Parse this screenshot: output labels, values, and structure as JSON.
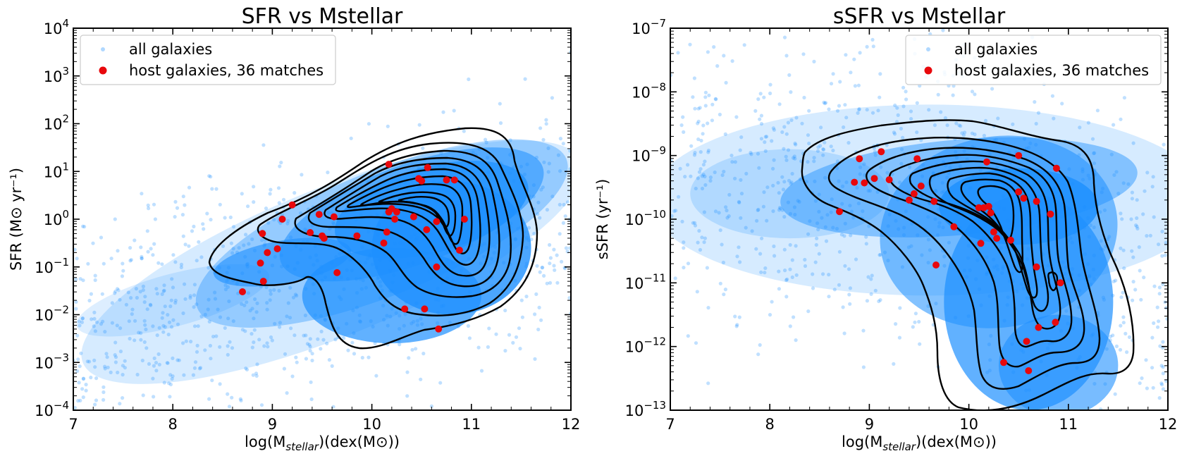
{
  "colors": {
    "all_galaxies": "#1e90ff",
    "host_galaxies": "#e8080c",
    "contour": "#000000"
  },
  "chart_data": [
    {
      "type": "scatter",
      "title": "SFR vs Mstellar",
      "xlabel": {
        "pre": "log(M",
        "sub": "stellar",
        "post": ")(dex(M⊙))"
      },
      "ylabel": "SFR (M⊙ yr⁻¹)",
      "xlim": [
        7,
        12
      ],
      "ylim_log10": [
        -4,
        4
      ],
      "yscale": "log",
      "xticks": [
        "7",
        "8",
        "9",
        "10",
        "11",
        "12"
      ],
      "yticks_exponents": [
        "−4",
        "−3",
        "−2",
        "−1",
        "0",
        "1",
        "2",
        "3",
        "4"
      ],
      "legend": {
        "position": "upper-left",
        "entries": [
          "all galaxies",
          "host galaxies, 36 matches"
        ]
      },
      "all_galaxies_density": {
        "description": "dense cloud",
        "x_range": [
          7.0,
          12.0
        ],
        "log10_y_range": [
          -4.0,
          3.5
        ]
      },
      "contour_levels": 10,
      "series": [
        {
          "name": "host galaxies, 36 matches",
          "x": [
            8.7,
            8.88,
            8.9,
            8.91,
            8.95,
            9.05,
            9.1,
            9.2,
            9.38,
            9.47,
            9.5,
            9.52,
            9.62,
            9.65,
            9.85,
            10.12,
            10.15,
            10.17,
            10.17,
            10.2,
            10.23,
            10.25,
            10.33,
            10.42,
            10.47,
            10.5,
            10.53,
            10.55,
            10.56,
            10.65,
            10.65,
            10.67,
            10.75,
            10.83,
            10.88,
            10.93
          ],
          "log10_y": [
            -1.52,
            -0.92,
            -0.3,
            -1.3,
            -0.7,
            -0.62,
            0.0,
            0.3,
            -0.28,
            0.1,
            -0.35,
            -0.4,
            0.05,
            -1.12,
            -0.35,
            -0.5,
            -0.27,
            1.15,
            0.15,
            0.22,
            0.0,
            0.15,
            -1.88,
            0.05,
            0.85,
            0.8,
            -1.88,
            -0.22,
            1.08,
            -1.0,
            -0.05,
            -2.3,
            0.82,
            0.82,
            -0.65,
            0.0
          ]
        }
      ]
    },
    {
      "type": "scatter",
      "title": "sSFR vs Mstellar",
      "xlabel": {
        "pre": "log(M",
        "sub": "stellar",
        "post": ")(dex(M⊙))"
      },
      "ylabel": "sSFR (yr⁻¹)",
      "xlim": [
        7,
        12
      ],
      "ylim_log10": [
        -13,
        -7
      ],
      "yscale": "log",
      "xticks": [
        "7",
        "8",
        "9",
        "10",
        "11",
        "12"
      ],
      "yticks_exponents": [
        "−13",
        "−12",
        "−11",
        "−10",
        "−9",
        "−8",
        "−7"
      ],
      "legend": {
        "position": "upper-right",
        "entries": [
          "all galaxies",
          "host galaxies, 36 matches"
        ]
      },
      "all_galaxies_density": {
        "description": "dense cloud",
        "x_range": [
          7.0,
          12.0
        ],
        "log10_y_range": [
          -13.0,
          -7.9
        ]
      },
      "contour_levels": 10,
      "series": [
        {
          "name": "host galaxies, 36 matches",
          "x": [
            8.7,
            8.85,
            8.9,
            8.95,
            9.05,
            9.12,
            9.2,
            9.4,
            9.45,
            9.48,
            9.52,
            9.65,
            9.67,
            9.85,
            10.1,
            10.12,
            10.15,
            10.18,
            10.2,
            10.22,
            10.25,
            10.28,
            10.35,
            10.42,
            10.5,
            10.55,
            10.58,
            10.6,
            10.68,
            10.68,
            10.7,
            10.82,
            10.87,
            10.92,
            10.88,
            10.5
          ],
          "log10_y": [
            -9.88,
            -9.42,
            -9.05,
            -9.43,
            -9.36,
            -8.94,
            -9.38,
            -9.7,
            -9.6,
            -9.05,
            -9.48,
            -9.72,
            -10.72,
            -10.12,
            -9.82,
            -10.38,
            -9.82,
            -9.1,
            -9.8,
            -9.9,
            -10.2,
            -10.3,
            -12.25,
            -10.33,
            -9.57,
            -9.67,
            -11.92,
            -12.38,
            -9.72,
            -10.75,
            -11.7,
            -9.92,
            -11.62,
            -11.0,
            -9.2,
            -9.0
          ]
        }
      ]
    }
  ]
}
